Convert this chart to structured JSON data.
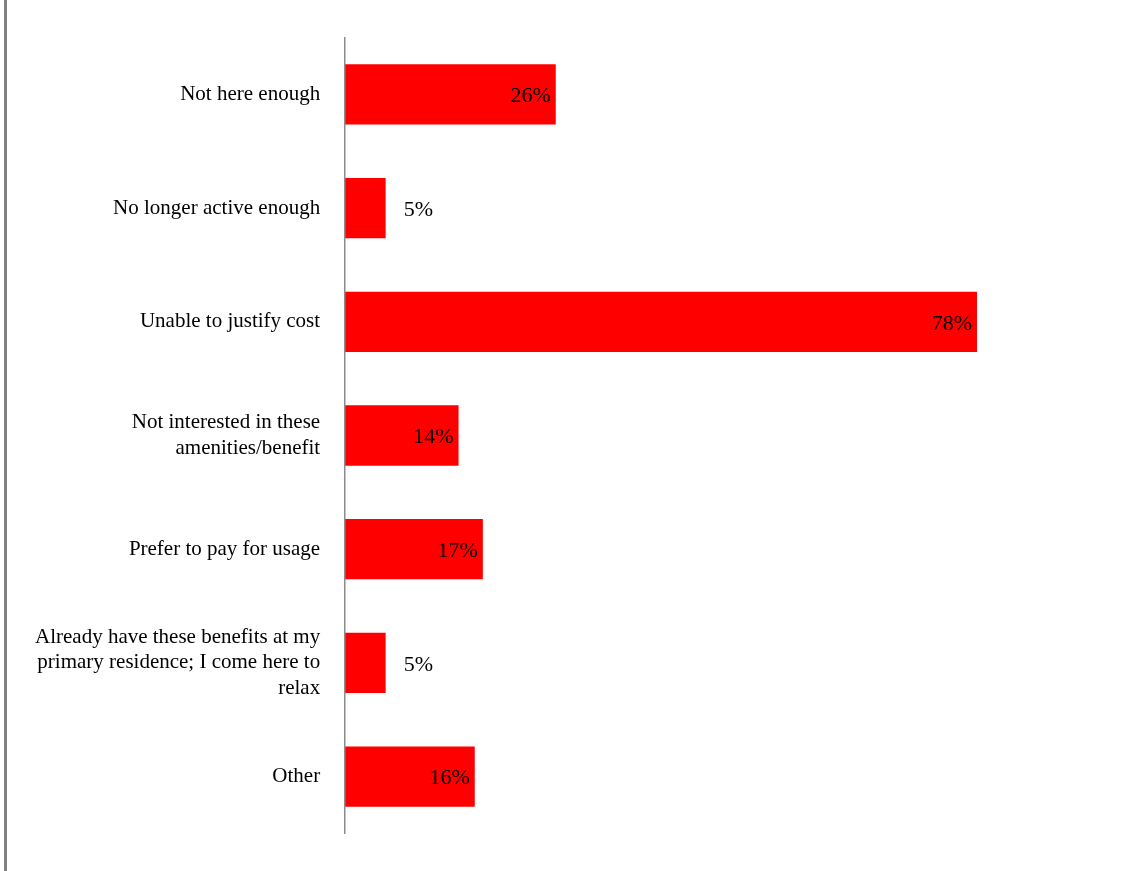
{
  "chart_data": {
    "type": "bar",
    "orientation": "horizontal",
    "categories": [
      "Not here enough",
      "No longer active enough",
      "Unable to justify cost",
      "Not interested in these amenities/benefit",
      "Prefer to pay for usage",
      "Already have these benefits at my primary residence; I come here to relax",
      "Other"
    ],
    "values": [
      26,
      5,
      78,
      14,
      17,
      5,
      16
    ],
    "value_labels": [
      "26%",
      "5%",
      "78%",
      "14%",
      "17%",
      "5%",
      "16%"
    ],
    "color": "#ff0000",
    "grid": false,
    "legend": false,
    "tick_labels": "y"
  }
}
